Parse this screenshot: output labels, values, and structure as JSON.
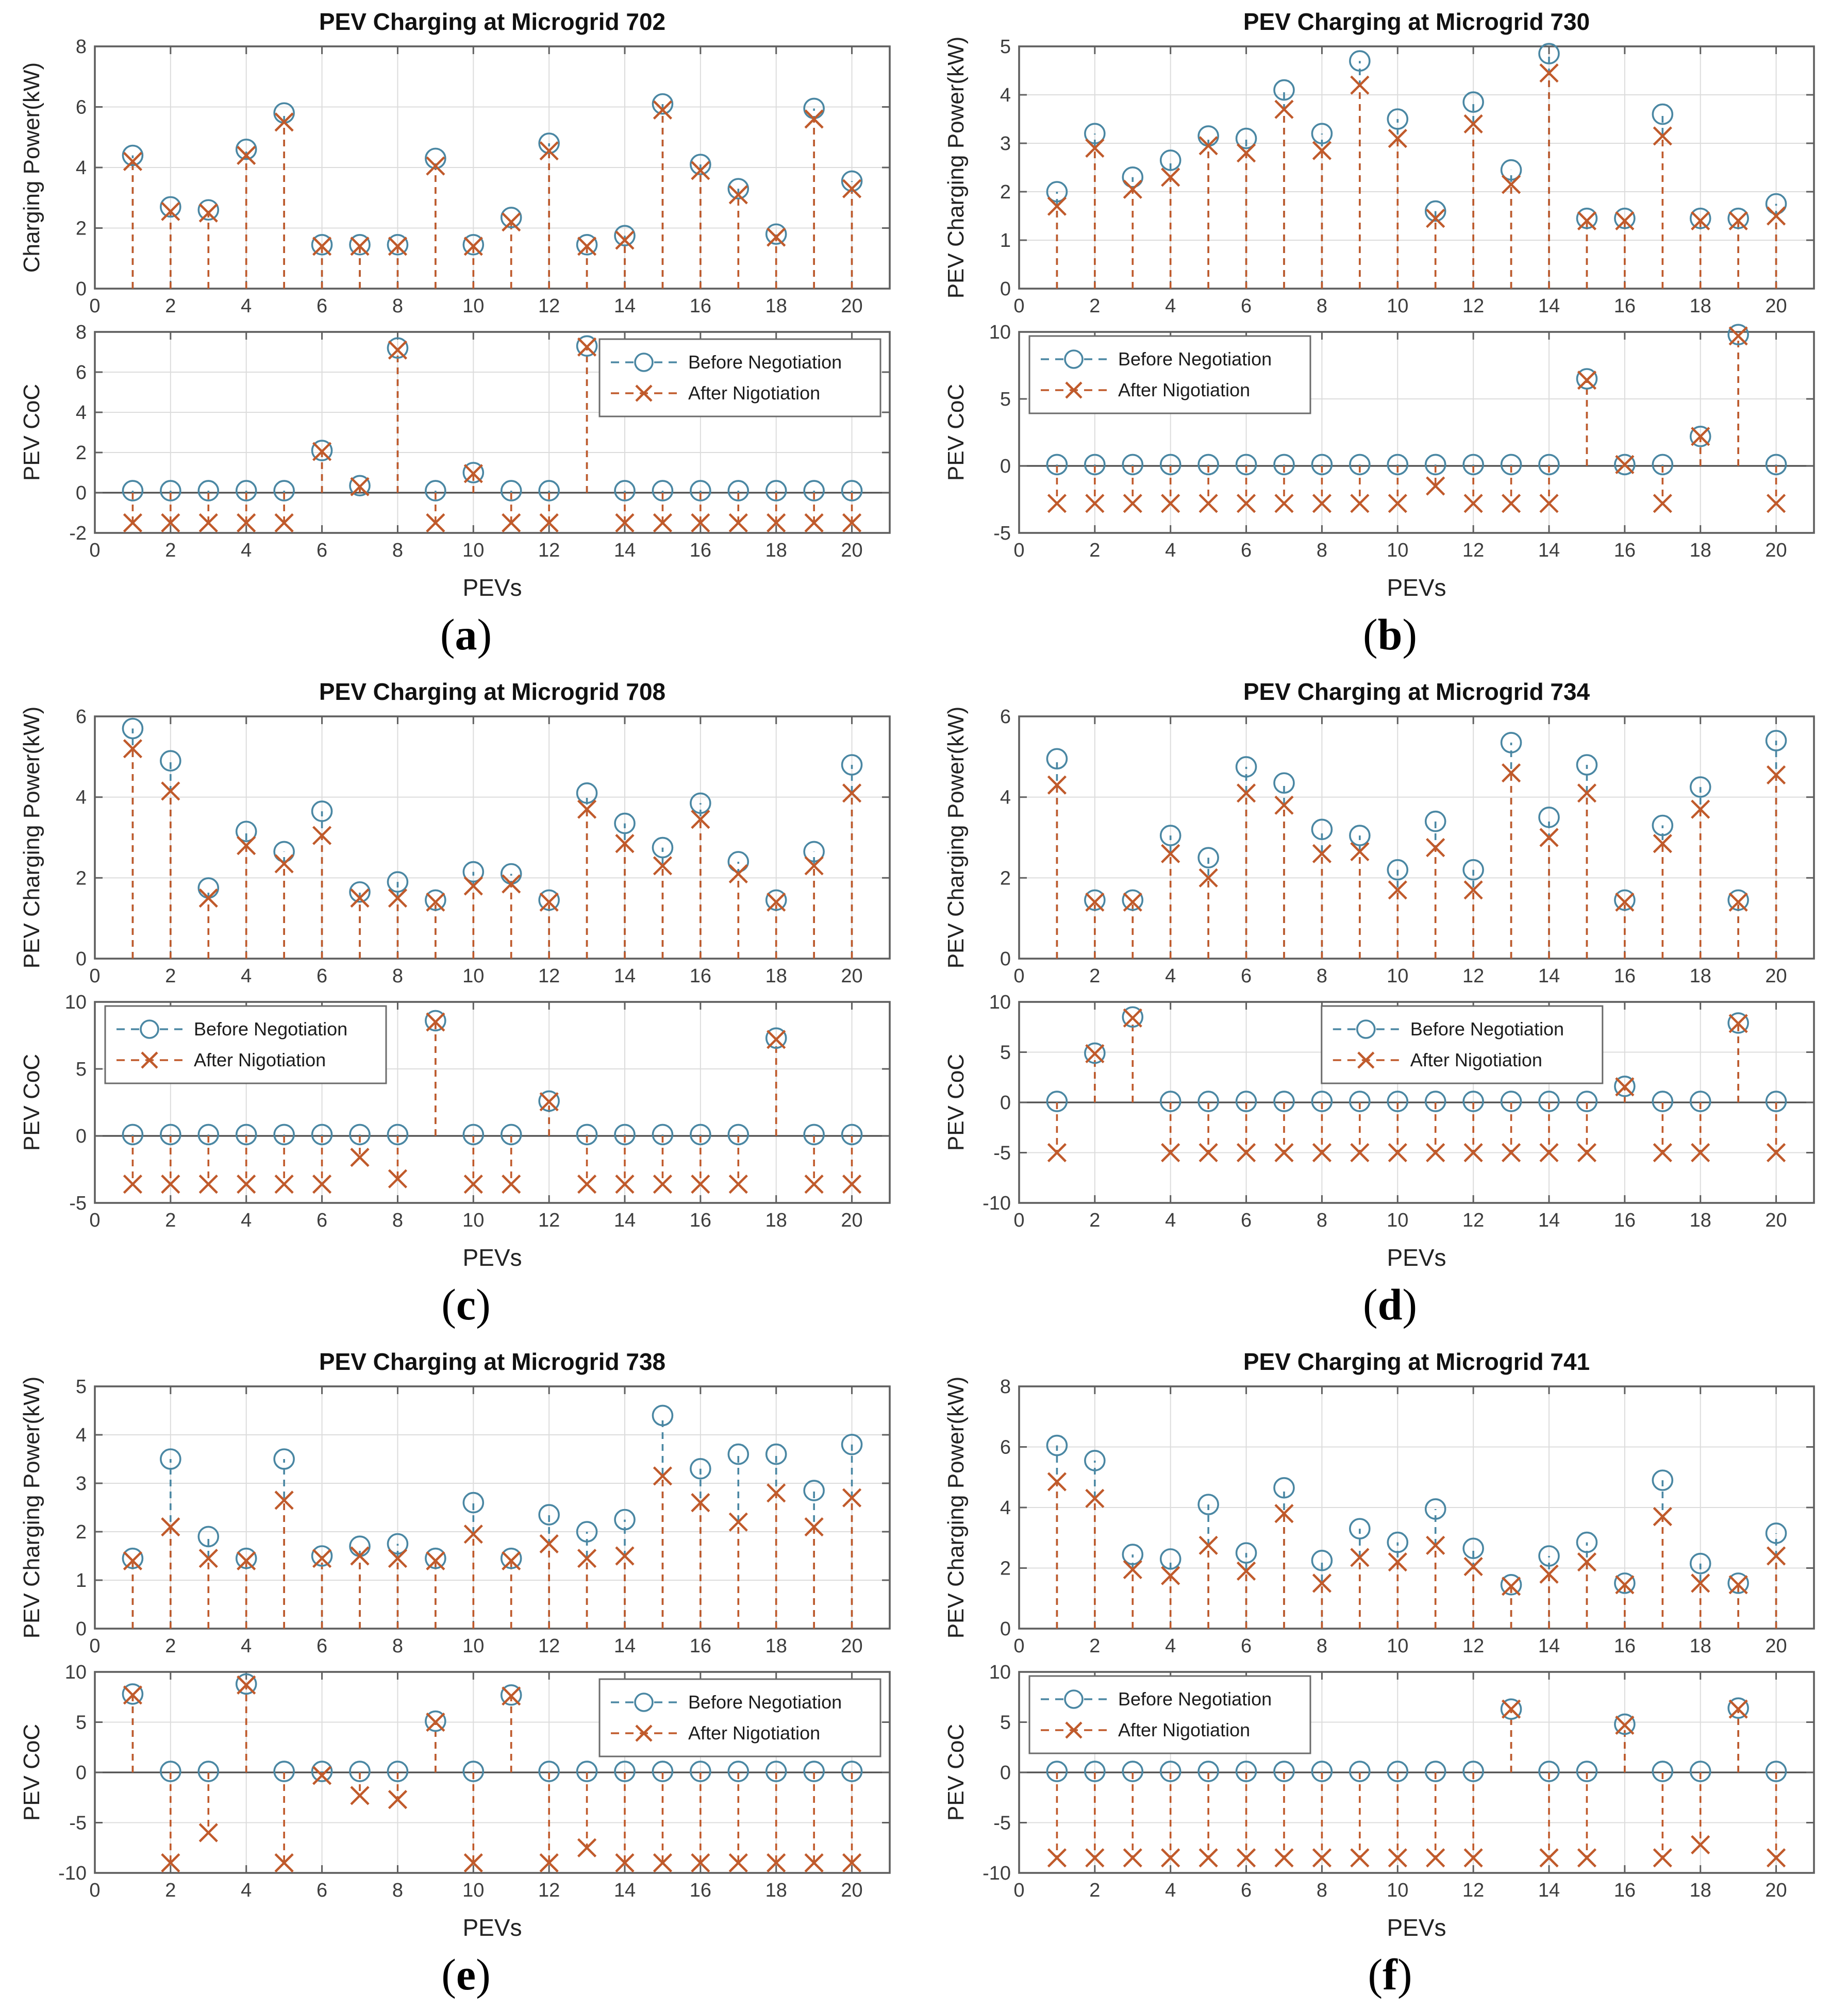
{
  "page": {
    "background": "#ffffff",
    "type": "scientific-figure",
    "rows": 3,
    "cols": 2
  },
  "legend": {
    "before_label": "Before Negotiation",
    "after_label": "After Nigotiation"
  },
  "colors": {
    "before": "#4a87a3",
    "after": "#c05a2b",
    "grid": "#dcdcdc",
    "axis_box": "#5f5f5f",
    "zero_line": "#4d4d4d",
    "tick_text": "#3d3d3d",
    "label_text": "#222222",
    "title_text": "#111111",
    "legend_border": "#6b6b6b",
    "legend_bg": "#ffffff"
  },
  "x_axis": {
    "x": [
      1,
      2,
      3,
      4,
      5,
      6,
      7,
      8,
      9,
      10,
      11,
      12,
      13,
      14,
      15,
      16,
      17,
      18,
      19,
      20
    ],
    "xlim": [
      0,
      21
    ],
    "xticks": [
      0,
      2,
      4,
      6,
      8,
      10,
      12,
      14,
      16,
      18,
      20
    ],
    "xlabel": "PEVs"
  },
  "chart_data": [
    {
      "letter": "a",
      "title": "PEV Charging at Microgrid 702",
      "power": {
        "type": "stem",
        "ylabel": "Charging Power(kW)",
        "ylim": [
          0,
          8
        ],
        "yticks": [
          0,
          2,
          4,
          6,
          8
        ],
        "series": [
          {
            "name": "Before Negotiation",
            "values": [
              4.4,
              2.7,
              2.6,
              4.6,
              5.8,
              1.45,
              1.45,
              1.45,
              4.3,
              1.45,
              2.35,
              4.8,
              1.45,
              1.75,
              6.1,
              4.1,
              3.3,
              1.8,
              5.95,
              3.55
            ]
          },
          {
            "name": "After Nigotiation",
            "values": [
              4.2,
              2.55,
              2.5,
              4.4,
              5.5,
              1.4,
              1.4,
              1.4,
              4.05,
              1.4,
              2.2,
              4.55,
              1.4,
              1.6,
              5.9,
              3.9,
              3.1,
              1.7,
              5.6,
              3.3
            ]
          }
        ]
      },
      "coc": {
        "type": "stem",
        "ylabel": "PEV CoC",
        "xlabel": "PEVs",
        "ylim": [
          -2,
          8
        ],
        "yticks": [
          -2,
          0,
          2,
          4,
          6,
          8
        ],
        "zero_line": true,
        "legend_position": "top-right",
        "series": [
          {
            "name": "Before Negotiation",
            "values": [
              0.1,
              0.1,
              0.1,
              0.1,
              0.1,
              2.1,
              0.35,
              7.2,
              0.1,
              1.0,
              0.1,
              0.1,
              7.3,
              0.1,
              0.1,
              0.1,
              0.1,
              0.1,
              0.1,
              0.1
            ]
          },
          {
            "name": "After Nigotiation",
            "values": [
              -1.5,
              -1.5,
              -1.5,
              -1.5,
              -1.5,
              2.05,
              0.3,
              7.1,
              -1.5,
              0.95,
              -1.5,
              -1.5,
              7.25,
              -1.5,
              -1.5,
              -1.5,
              -1.5,
              -1.5,
              -1.5,
              -1.5
            ]
          }
        ]
      }
    },
    {
      "letter": "b",
      "title": "PEV Charging at Microgrid 730",
      "power": {
        "type": "stem",
        "ylabel": "PEV Charging Power(kW)",
        "ylim": [
          0,
          5
        ],
        "yticks": [
          0,
          1,
          2,
          3,
          4,
          5
        ],
        "series": [
          {
            "name": "Before Negotiation",
            "values": [
              2.0,
              3.2,
              2.3,
              2.65,
              3.15,
              3.1,
              4.1,
              3.2,
              4.7,
              3.5,
              1.6,
              3.85,
              2.45,
              4.85,
              1.45,
              1.45,
              3.6,
              1.45,
              1.45,
              1.75
            ]
          },
          {
            "name": "After Nigotiation",
            "values": [
              1.7,
              2.9,
              2.05,
              2.3,
              2.95,
              2.8,
              3.7,
              2.85,
              4.2,
              3.1,
              1.45,
              3.4,
              2.15,
              4.45,
              1.4,
              1.4,
              3.15,
              1.4,
              1.4,
              1.5
            ]
          }
        ]
      },
      "coc": {
        "type": "stem",
        "ylabel": "PEV CoC",
        "xlabel": "PEVs",
        "ylim": [
          -5,
          10
        ],
        "yticks": [
          -5,
          0,
          5,
          10
        ],
        "zero_line": true,
        "legend_position": "top-left",
        "series": [
          {
            "name": "Before Negotiation",
            "values": [
              0.1,
              0.1,
              0.1,
              0.1,
              0.1,
              0.1,
              0.1,
              0.1,
              0.1,
              0.1,
              0.1,
              0.1,
              0.1,
              0.1,
              6.5,
              0.1,
              0.1,
              2.2,
              9.8,
              0.1
            ]
          },
          {
            "name": "After Nigotiation",
            "values": [
              -2.8,
              -2.8,
              -2.8,
              -2.8,
              -2.8,
              -2.8,
              -2.8,
              -2.8,
              -2.8,
              -2.8,
              -1.5,
              -2.8,
              -2.8,
              -2.8,
              6.4,
              0.1,
              -2.8,
              2.2,
              9.7,
              -2.8
            ]
          }
        ]
      }
    },
    {
      "letter": "c",
      "title": "PEV Charging at Microgrid 708",
      "power": {
        "type": "stem",
        "ylabel": "PEV Charging Power(kW)",
        "ylim": [
          0,
          6
        ],
        "yticks": [
          0,
          2,
          4,
          6
        ],
        "series": [
          {
            "name": "Before Negotiation",
            "values": [
              5.7,
              4.9,
              1.75,
              3.15,
              2.65,
              3.65,
              1.65,
              1.9,
              1.45,
              2.15,
              2.1,
              1.45,
              4.1,
              3.35,
              2.75,
              3.85,
              2.4,
              1.45,
              2.65,
              4.8
            ]
          },
          {
            "name": "After Nigotiation",
            "values": [
              5.2,
              4.15,
              1.5,
              2.8,
              2.35,
              3.05,
              1.5,
              1.5,
              1.4,
              1.8,
              1.85,
              1.4,
              3.7,
              2.85,
              2.3,
              3.45,
              2.1,
              1.4,
              2.3,
              4.1
            ]
          }
        ]
      },
      "coc": {
        "type": "stem",
        "ylabel": "PEV CoC",
        "xlabel": "PEVs",
        "ylim": [
          -5,
          10
        ],
        "yticks": [
          -5,
          0,
          5,
          10
        ],
        "zero_line": true,
        "legend_position": "top-left",
        "series": [
          {
            "name": "Before Negotiation",
            "values": [
              0.1,
              0.1,
              0.1,
              0.1,
              0.1,
              0.1,
              0.1,
              0.1,
              8.6,
              0.1,
              0.1,
              2.6,
              0.1,
              0.1,
              0.1,
              0.1,
              0.1,
              7.3,
              0.1,
              0.1
            ]
          },
          {
            "name": "After Nigotiation",
            "values": [
              -3.6,
              -3.6,
              -3.6,
              -3.6,
              -3.6,
              -3.6,
              -1.6,
              -3.2,
              8.5,
              -3.6,
              -3.6,
              2.55,
              -3.6,
              -3.6,
              -3.6,
              -3.6,
              -3.6,
              7.2,
              -3.6,
              -3.6
            ]
          }
        ]
      }
    },
    {
      "letter": "d",
      "title": "PEV Charging at Microgrid 734",
      "power": {
        "type": "stem",
        "ylabel": "PEV Charging Power(kW)",
        "ylim": [
          0,
          6
        ],
        "yticks": [
          0,
          2,
          4,
          6
        ],
        "series": [
          {
            "name": "Before Negotiation",
            "values": [
              4.95,
              1.45,
              1.45,
              3.05,
              2.5,
              4.75,
              4.35,
              3.2,
              3.05,
              2.2,
              3.4,
              2.2,
              5.35,
              3.5,
              4.8,
              1.45,
              3.3,
              4.25,
              1.45,
              5.4
            ]
          },
          {
            "name": "After Nigotiation",
            "values": [
              4.3,
              1.4,
              1.4,
              2.6,
              2.0,
              4.1,
              3.8,
              2.6,
              2.65,
              1.7,
              2.75,
              1.7,
              4.6,
              3.0,
              4.1,
              1.4,
              2.85,
              3.7,
              1.4,
              4.55
            ]
          }
        ]
      },
      "coc": {
        "type": "stem",
        "ylabel": "PEV CoC",
        "xlabel": "PEVs",
        "ylim": [
          -10,
          10
        ],
        "yticks": [
          -10,
          -5,
          0,
          5,
          10
        ],
        "zero_line": true,
        "legend_position": "top-center",
        "series": [
          {
            "name": "Before Negotiation",
            "values": [
              0.1,
              4.9,
              8.5,
              0.1,
              0.1,
              0.1,
              0.1,
              0.1,
              0.1,
              0.1,
              0.1,
              0.1,
              0.1,
              0.1,
              0.1,
              1.6,
              0.1,
              0.1,
              7.9,
              0.1
            ]
          },
          {
            "name": "After Nigotiation",
            "values": [
              -5,
              4.85,
              8.4,
              -5,
              -5,
              -5,
              -5,
              -5,
              -5,
              -5,
              -5,
              -5,
              -5,
              -5,
              -5,
              1.55,
              -5,
              -5,
              7.85,
              -5
            ]
          }
        ]
      }
    },
    {
      "letter": "e",
      "title": "PEV Charging at Microgrid 738",
      "power": {
        "type": "stem",
        "ylabel": "PEV Charging Power(kW)",
        "ylim": [
          0,
          5
        ],
        "yticks": [
          0,
          1,
          2,
          3,
          4,
          5
        ],
        "series": [
          {
            "name": "Before Negotiation",
            "values": [
              1.45,
              3.5,
              1.9,
              1.45,
              3.5,
              1.5,
              1.7,
              1.75,
              1.45,
              2.6,
              1.45,
              2.35,
              2.0,
              2.25,
              4.4,
              3.3,
              3.6,
              3.6,
              2.85,
              3.8
            ]
          },
          {
            "name": "After Nigotiation",
            "values": [
              1.4,
              2.1,
              1.45,
              1.4,
              2.65,
              1.45,
              1.5,
              1.45,
              1.4,
              1.95,
              1.4,
              1.75,
              1.45,
              1.5,
              3.15,
              2.6,
              2.2,
              2.8,
              2.1,
              2.7
            ]
          }
        ]
      },
      "coc": {
        "type": "stem",
        "ylabel": "PEV CoC",
        "xlabel": "PEVs",
        "ylim": [
          -10,
          10
        ],
        "yticks": [
          -10,
          -5,
          0,
          5,
          10
        ],
        "zero_line": true,
        "legend_position": "top-right",
        "series": [
          {
            "name": "Before Negotiation",
            "values": [
              7.8,
              0.1,
              0.1,
              8.8,
              0.1,
              0.1,
              0.1,
              0.1,
              5.1,
              0.1,
              7.7,
              0.1,
              0.1,
              0.1,
              0.1,
              0.1,
              0.1,
              0.1,
              0.1,
              0.1
            ]
          },
          {
            "name": "After Nigotiation",
            "values": [
              7.7,
              -9,
              -6,
              8.7,
              -9,
              -0.3,
              -2.3,
              -2.7,
              5.0,
              -9,
              7.6,
              -9,
              -7.5,
              -9,
              -9,
              -9,
              -9,
              -9,
              -9,
              -9
            ]
          }
        ]
      }
    },
    {
      "letter": "f",
      "title": "PEV Charging at Microgrid 741",
      "power": {
        "type": "stem",
        "ylabel": "PEV Charging Power(kW)",
        "ylim": [
          0,
          8
        ],
        "yticks": [
          0,
          2,
          4,
          6,
          8
        ],
        "series": [
          {
            "name": "Before Negotiation",
            "values": [
              6.05,
              5.55,
              2.45,
              2.3,
              4.1,
              2.5,
              4.65,
              2.25,
              3.3,
              2.85,
              3.95,
              2.65,
              1.45,
              2.4,
              2.85,
              1.5,
              4.9,
              2.15,
              1.5,
              3.15
            ]
          },
          {
            "name": "After Nigotiation",
            "values": [
              4.85,
              4.3,
              1.95,
              1.75,
              2.75,
              1.9,
              3.8,
              1.5,
              2.35,
              2.2,
              2.75,
              2.05,
              1.4,
              1.8,
              2.2,
              1.45,
              3.7,
              1.5,
              1.45,
              2.4
            ]
          }
        ]
      },
      "coc": {
        "type": "stem",
        "ylabel": "PEV CoC",
        "xlabel": "PEVs",
        "ylim": [
          -10,
          10
        ],
        "yticks": [
          -10,
          -5,
          0,
          5,
          10
        ],
        "zero_line": true,
        "legend_position": "top-left",
        "series": [
          {
            "name": "Before Negotiation",
            "values": [
              0.1,
              0.1,
              0.1,
              0.1,
              0.1,
              0.1,
              0.1,
              0.1,
              0.1,
              0.1,
              0.1,
              0.1,
              6.3,
              0.1,
              0.1,
              4.8,
              0.1,
              0.1,
              6.4,
              0.1
            ]
          },
          {
            "name": "After Nigotiation",
            "values": [
              -8.5,
              -8.5,
              -8.5,
              -8.5,
              -8.5,
              -8.5,
              -8.5,
              -8.5,
              -8.5,
              -8.5,
              -8.5,
              -8.5,
              6.3,
              -8.5,
              -8.5,
              4.7,
              -8.5,
              -7.2,
              6.3,
              -8.5
            ]
          }
        ]
      }
    }
  ]
}
